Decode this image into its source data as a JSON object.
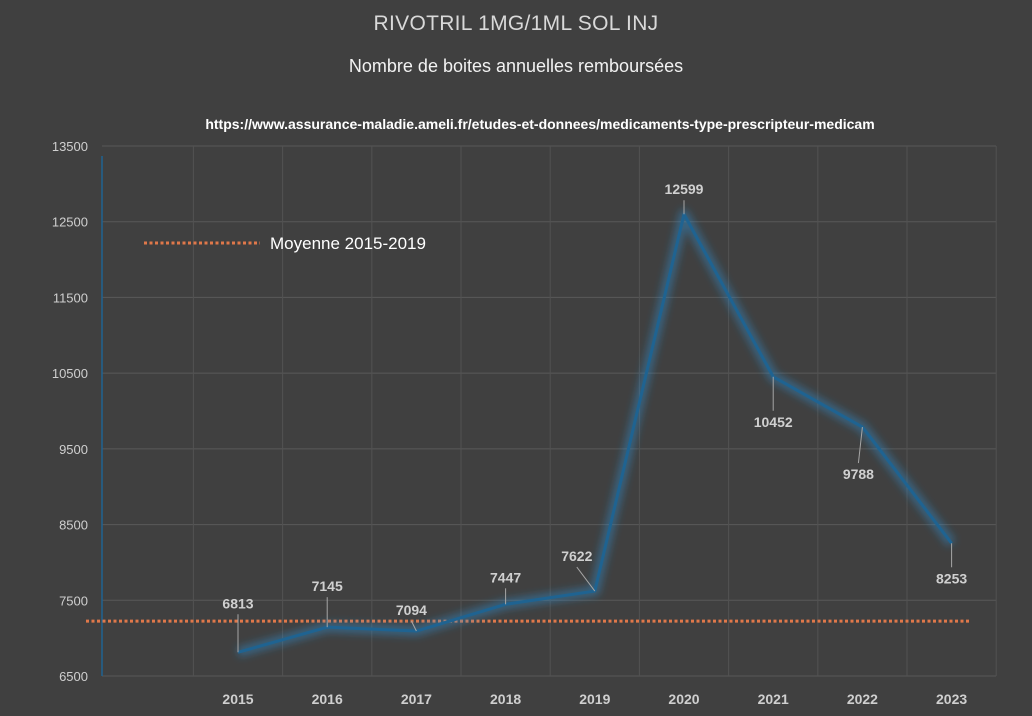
{
  "chart_data": {
    "type": "line",
    "title": "RIVOTRIL 1MG/1ML SOL INJ",
    "subtitle": "Nombre de boites annuelles remboursées",
    "source": "https://www.assurance-maladie.ameli.fr/etudes-et-donnees/medicaments-type-prescripteur-medicam",
    "categories": [
      "2015",
      "2016",
      "2017",
      "2018",
      "2019",
      "2020",
      "2021",
      "2022",
      "2023"
    ],
    "series": [
      {
        "values": [
          6813,
          7145,
          7094,
          7447,
          7622,
          12599,
          10452,
          9788,
          8253
        ],
        "color": "#1f6391"
      }
    ],
    "reference_line": {
      "name": "Moyenne 2015-2019",
      "value": 7224,
      "color": "#e0784a"
    },
    "ylim": [
      6500,
      13500
    ],
    "yticks": [
      "6500",
      "7500",
      "8500",
      "9500",
      "10500",
      "11500",
      "12500",
      "13500"
    ],
    "grid": true,
    "legend": "top-left"
  }
}
